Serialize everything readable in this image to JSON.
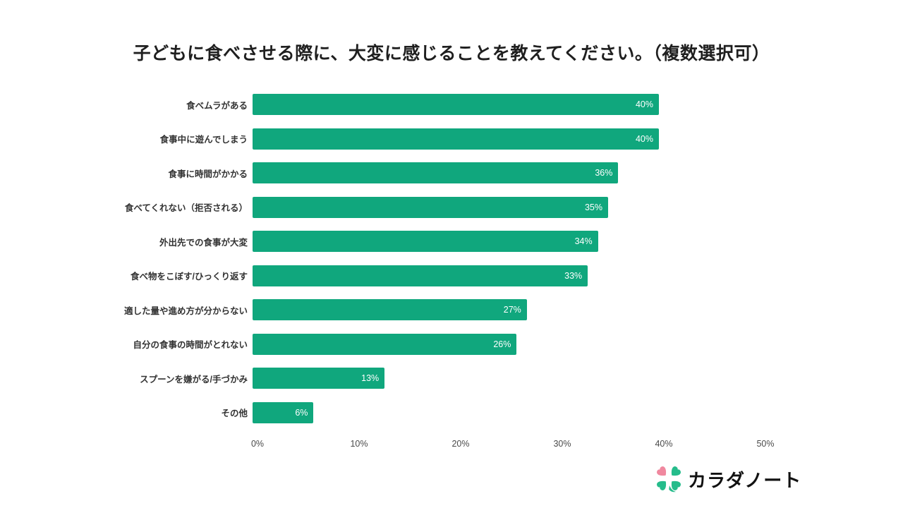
{
  "chart_data": {
    "type": "bar",
    "orientation": "horizontal",
    "title": "子どもに食べさせる際に、大変に感じることを教えてください。（複数選択可）",
    "categories": [
      "食べムラがある",
      "食事中に遊んでしまう",
      "食事に時間がかかる",
      "食べてくれない（拒否される）",
      "外出先での食事が大変",
      "食べ物をこぼす/ひっくり返す",
      "適した量や進め方が分からない",
      "自分の食事の時間がとれない",
      "スプーンを嫌がる/手づかみ",
      "その他"
    ],
    "values": [
      40,
      40,
      36,
      35,
      34,
      33,
      27,
      26,
      13,
      6
    ],
    "value_labels": [
      "40%",
      "40%",
      "36%",
      "35%",
      "34%",
      "33%",
      "27%",
      "26%",
      "13%",
      "6%"
    ],
    "xlabel": "",
    "ylabel": "",
    "xlim": [
      0,
      50
    ],
    "x_ticks": [
      {
        "value": 0,
        "label": "0%"
      },
      {
        "value": 10,
        "label": "10%"
      },
      {
        "value": 20,
        "label": "20%"
      },
      {
        "value": 30,
        "label": "30%"
      },
      {
        "value": 40,
        "label": "40%"
      },
      {
        "value": 50,
        "label": "50%"
      }
    ],
    "grid": false,
    "legend": null,
    "bar_color": "#10a77d",
    "value_label_color": "#ffffff",
    "category_label_color": "#333333",
    "axis_label_color": "#4a4a4a"
  },
  "logo": {
    "text": "カラダノート",
    "clover_icon": "four-leaf-clover-icon",
    "clover_green": "#25bc8b",
    "clover_pink": "#f0889f"
  }
}
